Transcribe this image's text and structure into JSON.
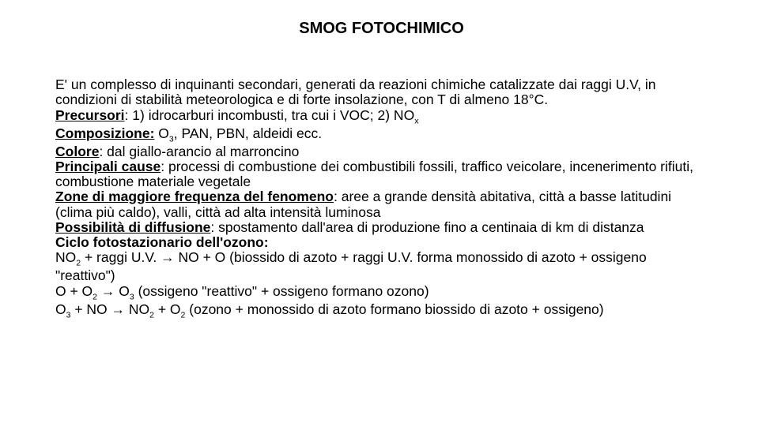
{
  "title": "SMOG FOTOCHIMICO",
  "p1": "E' un complesso di inquinanti secondari, generati da reazioni chimiche catalizzate dai raggi U.V, in condizioni di stabilità meteorologica e di forte insolazione, con T di almeno 18°C.",
  "l_precursori": "Precursori",
  "v_precursori_a": ": 1) idrocarburi incombusti, tra cui i VOC; 2) NO",
  "v_precursori_sub": "x",
  "l_composizione": "Composizione:",
  "v_composizione_a": " O",
  "v_composizione_sub": "3",
  "v_composizione_b": ", PAN, PBN, aldeidi ecc.",
  "l_colore": "Colore",
  "v_colore": ": dal giallo-arancio al marroncino",
  "l_cause": "Principali cause",
  "v_cause": ": processi di combustione dei combustibili fossili, traffico veicolare, incenerimento rifiuti, combustione materiale vegetale",
  "l_zone": "Zone di maggiore frequenza del fenomeno",
  "v_zone": ": aree a grande densità abitativa, città a basse latitudini (clima più caldo), valli, città ad alta intensità luminosa",
  "l_diff": "Possibilità di diffusione",
  "v_diff": ": spostamento dall'area di produzione fino a centinaia di km di distanza",
  "l_ciclo": "Ciclo fotostazionario dell'ozono:",
  "r1_a": "NO",
  "r1_s1": "2",
  "r1_b": " + raggi U.V. → NO + O  (biossido di azoto + raggi U.V. forma monossido di azoto + ossigeno \"reattivo\")",
  "r2_a": "O + O",
  "r2_s1": "2",
  "r2_b": " → O",
  "r2_s2": "3",
  "r2_c": "   (ossigeno \"reattivo\" + ossigeno formano ozono)",
  "r3_a": "O",
  "r3_s1": "3",
  "r3_b": " + NO → NO",
  "r3_s2": "2",
  "r3_c": " + O",
  "r3_s3": "2",
  "r3_d": " (ozono + monossido di azoto formano biossido di azoto + ossigeno)"
}
